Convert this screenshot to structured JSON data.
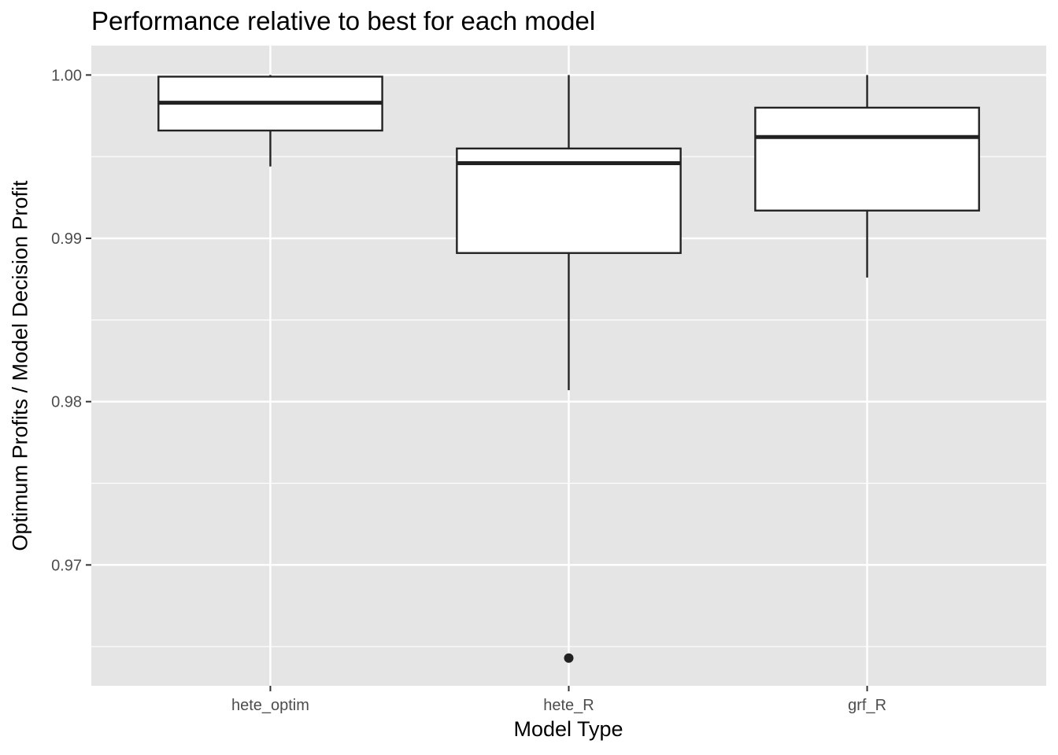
{
  "chart_data": {
    "type": "boxplot",
    "title": "Performance relative to best for each model",
    "xlabel": "Model Type",
    "ylabel": "Optimum Profits / Model Decision Profit",
    "categories": [
      "hete_optim",
      "hete_R",
      "grf_R"
    ],
    "ylim": [
      0.9626,
      1.0018
    ],
    "yticks": [
      0.97,
      0.98,
      0.99,
      1.0
    ],
    "ytick_labels": [
      "0.97",
      "0.98",
      "0.99",
      "1.00"
    ],
    "boxes": [
      {
        "category": "hete_optim",
        "whisker_low": 0.9944,
        "q1": 0.9966,
        "median": 0.9983,
        "q3": 0.9999,
        "whisker_high": 1.0,
        "outliers": []
      },
      {
        "category": "hete_R",
        "whisker_low": 0.9807,
        "q1": 0.9891,
        "median": 0.9946,
        "q3": 0.9955,
        "whisker_high": 1.0,
        "outliers": [
          0.9643
        ]
      },
      {
        "category": "grf_R",
        "whisker_low": 0.9876,
        "q1": 0.9917,
        "median": 0.9962,
        "q3": 0.998,
        "whisker_high": 1.0,
        "outliers": []
      }
    ],
    "grid": true,
    "colors": {
      "panel": "#e5e5e5",
      "grid": "#ffffff",
      "box_fill": "#ffffff",
      "box_stroke": "#222222",
      "tick": "#333333"
    }
  }
}
